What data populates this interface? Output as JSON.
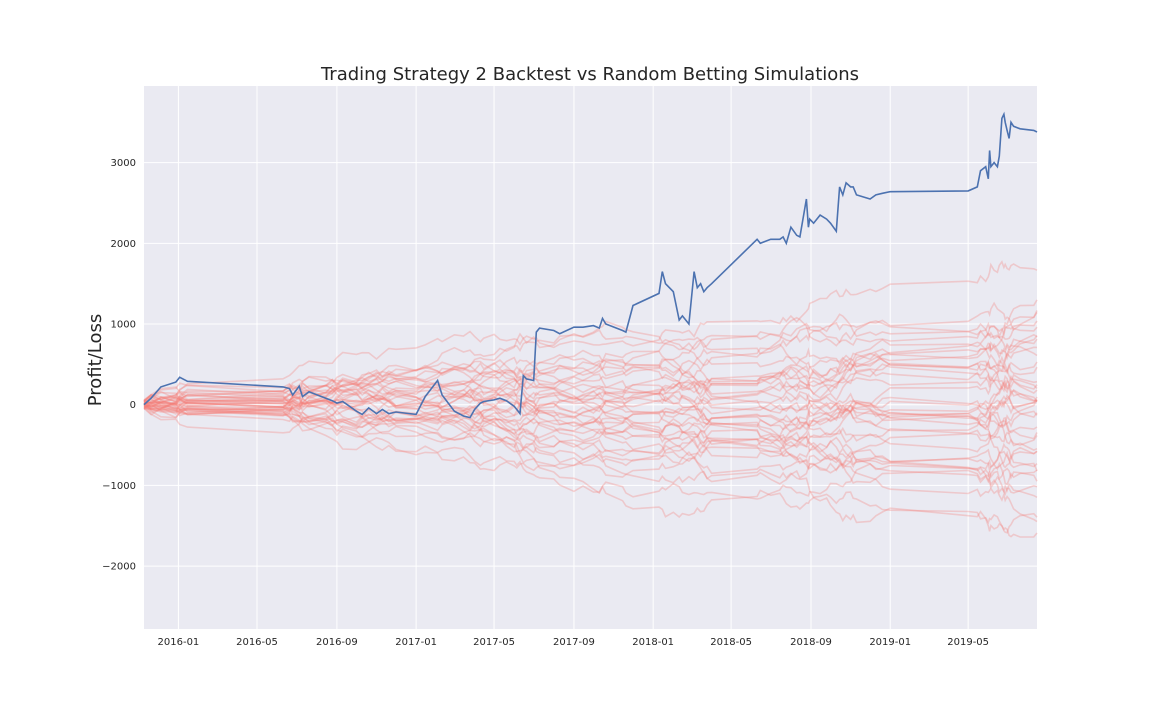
{
  "chart_data": {
    "type": "line",
    "title": "Trading Strategy 2 Backtest vs Random Betting Simulations",
    "xlabel": "",
    "ylabel": "Profit/Loss",
    "xlim": [
      "2015-11-09",
      "2019-08-15"
    ],
    "ylim": [
      -2780,
      3950
    ],
    "x_ticks": [
      "2016-01",
      "2016-05",
      "2016-09",
      "2017-01",
      "2017-05",
      "2017-09",
      "2018-01",
      "2018-05",
      "2018-09",
      "2019-01",
      "2019-05"
    ],
    "y_ticks": [
      3000,
      2000,
      1000,
      0,
      -1000,
      -2000
    ],
    "y_tick_labels": [
      "3000",
      "2000",
      "1000",
      "0",
      "−1000",
      "−2000"
    ],
    "grid": true,
    "background": "#EAEAF2",
    "colors": {
      "backtest": "#4C72B0",
      "simulation": "#F47C73"
    },
    "backtest": {
      "x": [
        "2015-11-09",
        "2015-11-20",
        "2015-12-05",
        "2015-12-28",
        "2016-01-03",
        "2016-01-15",
        "2016-06-10",
        "2016-06-20",
        "2016-06-25",
        "2016-07-05",
        "2016-07-10",
        "2016-07-20",
        "2016-08-15",
        "2016-08-25",
        "2016-09-01",
        "2016-09-10",
        "2016-10-01",
        "2016-10-10",
        "2016-10-20",
        "2016-11-01",
        "2016-11-10",
        "2016-11-20",
        "2016-12-01",
        "2017-01-01",
        "2017-01-15",
        "2017-02-03",
        "2017-02-10",
        "2017-03-01",
        "2017-03-15",
        "2017-03-25",
        "2017-04-01",
        "2017-04-10",
        "2017-04-15",
        "2017-05-01",
        "2017-05-10",
        "2017-05-20",
        "2017-06-01",
        "2017-06-05",
        "2017-06-10",
        "2017-06-15",
        "2017-06-20",
        "2017-07-01",
        "2017-07-05",
        "2017-07-10",
        "2017-08-01",
        "2017-08-10",
        "2017-09-01",
        "2017-09-15",
        "2017-10-01",
        "2017-10-10",
        "2017-10-15",
        "2017-10-20",
        "2017-11-15",
        "2017-11-20",
        "2017-12-01",
        "2018-01-10",
        "2018-01-15",
        "2018-01-20",
        "2018-02-01",
        "2018-02-10",
        "2018-02-15",
        "2018-02-25",
        "2018-03-05",
        "2018-03-10",
        "2018-03-15",
        "2018-03-20",
        "2018-03-25",
        "2018-04-01",
        "2018-06-10",
        "2018-06-15",
        "2018-07-01",
        "2018-07-15",
        "2018-07-20",
        "2018-07-25",
        "2018-08-01",
        "2018-08-10",
        "2018-08-15",
        "2018-08-25",
        "2018-08-28",
        "2018-08-30",
        "2018-09-05",
        "2018-09-15",
        "2018-09-25",
        "2018-10-01",
        "2018-10-10",
        "2018-10-15",
        "2018-10-20",
        "2018-10-25",
        "2018-11-01",
        "2018-11-05",
        "2018-11-10",
        "2018-12-01",
        "2018-12-10",
        "2018-12-20",
        "2019-01-01",
        "2019-05-01",
        "2019-05-15",
        "2019-05-20",
        "2019-05-28",
        "2019-06-01",
        "2019-06-03",
        "2019-06-05",
        "2019-06-10",
        "2019-06-15",
        "2019-06-18",
        "2019-06-22",
        "2019-06-25",
        "2019-06-27",
        "2019-06-30",
        "2019-07-03",
        "2019-07-06",
        "2019-07-10",
        "2019-07-20",
        "2019-08-10",
        "2019-08-15"
      ],
      "y": [
        0,
        80,
        220,
        280,
        340,
        290,
        220,
        200,
        120,
        230,
        100,
        160,
        80,
        50,
        20,
        40,
        -80,
        -120,
        -40,
        -110,
        -60,
        -110,
        -90,
        -120,
        100,
        300,
        120,
        -80,
        -140,
        -160,
        -60,
        20,
        40,
        60,
        80,
        50,
        -20,
        -60,
        -110,
        360,
        320,
        300,
        900,
        950,
        920,
        880,
        960,
        960,
        980,
        950,
        1070,
        1000,
        920,
        900,
        1230,
        1380,
        1650,
        1500,
        1400,
        1050,
        1100,
        1000,
        1650,
        1450,
        1500,
        1400,
        1450,
        1500,
        2050,
        2000,
        2050,
        2050,
        2080,
        2000,
        2200,
        2100,
        2080,
        2550,
        2200,
        2300,
        2250,
        2350,
        2300,
        2250,
        2150,
        2700,
        2600,
        2750,
        2700,
        2700,
        2600,
        2550,
        2600,
        2620,
        2640,
        2650,
        2700,
        2900,
        2950,
        2800,
        3150,
        2950,
        3000,
        2950,
        3080,
        3550,
        3600,
        3500,
        3400,
        3300,
        3500,
        3450,
        3420,
        3400,
        3380
      ]
    },
    "simulations_count": 40
  }
}
